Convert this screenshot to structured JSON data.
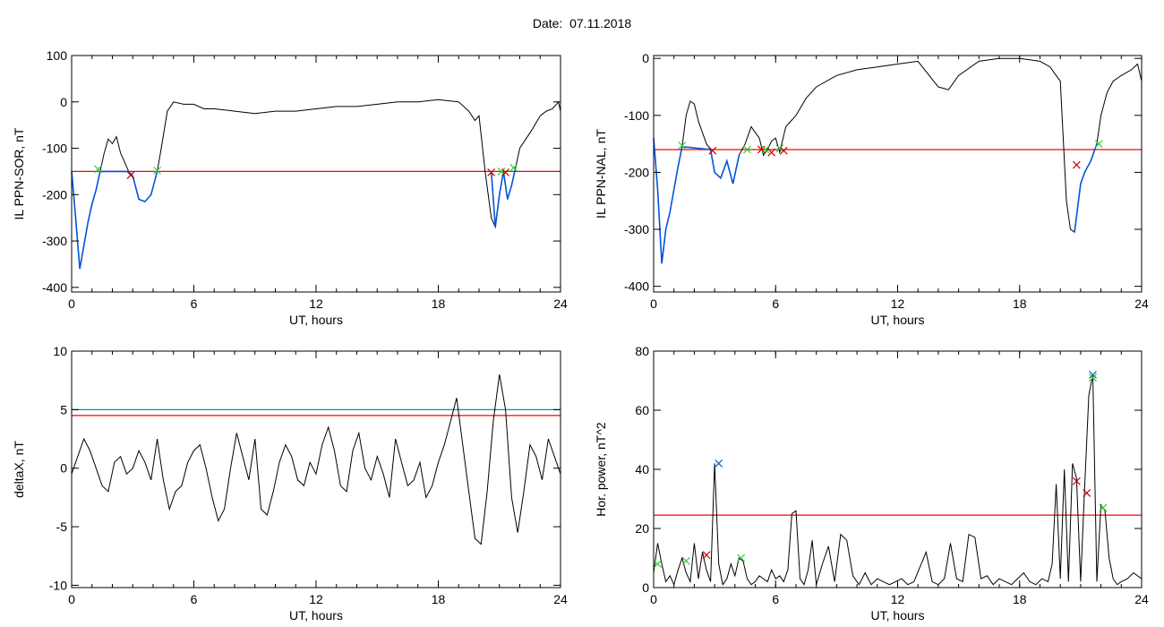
{
  "header": {
    "date_label": "Date:",
    "date_value": "07.11.2018"
  },
  "chart_data": [
    {
      "id": "panel-sor",
      "type": "line",
      "title": "",
      "xlabel": "UT, hours",
      "ylabel": "IL PPN-SOR, nT",
      "xlim": [
        0,
        24
      ],
      "ylim": [
        -410,
        100
      ],
      "x_ticks": [
        0,
        6,
        12,
        18,
        24
      ],
      "y_ticks": [
        100,
        0,
        -100,
        -200,
        -300,
        -400
      ],
      "threshold_lines": [
        {
          "value": -150,
          "color": "#ff0000"
        }
      ],
      "series": [
        {
          "color": "#000000",
          "x": [
            0,
            0.2,
            0.4,
            0.6,
            0.8,
            1.0,
            1.2,
            1.4,
            1.6,
            1.8,
            2.0,
            2.2,
            2.4,
            2.6,
            2.8,
            3.0,
            3.3,
            3.6,
            3.9,
            4.2,
            4.4,
            4.7,
            5.0,
            5.5,
            6.0,
            6.5,
            7.0,
            8.0,
            9.0,
            10.0,
            11.0,
            12.0,
            13.0,
            14.0,
            15.0,
            16.0,
            17.0,
            18.0,
            19.0,
            19.5,
            19.8,
            20.0,
            20.3,
            20.6,
            20.8,
            21.0,
            21.2,
            21.4,
            21.6,
            21.8,
            22.0,
            22.3,
            22.6,
            23.0,
            23.3,
            23.6,
            23.9,
            24.0
          ],
          "y": [
            -150,
            -250,
            -360,
            -310,
            -260,
            -220,
            -190,
            -150,
            -110,
            -80,
            -90,
            -75,
            -110,
            -130,
            -150,
            -160,
            -210,
            -215,
            -200,
            -150,
            -100,
            -20,
            0,
            -5,
            -5,
            -15,
            -15,
            -20,
            -25,
            -20,
            -20,
            -15,
            -10,
            -10,
            -5,
            0,
            0,
            5,
            0,
            -20,
            -40,
            -30,
            -150,
            -250,
            -270,
            -200,
            -150,
            -210,
            -180,
            -140,
            -100,
            -80,
            -60,
            -30,
            -20,
            -15,
            0,
            -20
          ]
        },
        {
          "color": "#0055dd",
          "x": [
            0,
            0.2,
            0.4,
            0.6,
            0.8,
            1.0,
            1.2,
            1.4,
            2.8,
            3.0,
            3.3,
            3.6,
            3.9,
            4.2,
            20.6,
            20.8,
            21.0,
            21.2,
            21.4,
            21.6,
            21.8
          ],
          "y": [
            -150,
            -250,
            -360,
            -310,
            -260,
            -220,
            -190,
            -150,
            -150,
            -160,
            -210,
            -215,
            -200,
            -150,
            -150,
            -270,
            -200,
            -150,
            -210,
            -180,
            -140
          ]
        }
      ],
      "markers": [
        {
          "x": 1.3,
          "y": -145,
          "color": "#33cc33"
        },
        {
          "x": 2.9,
          "y": -158,
          "color": "#cc0000"
        },
        {
          "x": 4.2,
          "y": -148,
          "color": "#33cc33"
        },
        {
          "x": 20.6,
          "y": -152,
          "color": "#cc0000"
        },
        {
          "x": 21.1,
          "y": -150,
          "color": "#33cc33"
        },
        {
          "x": 21.3,
          "y": -152,
          "color": "#cc0000"
        },
        {
          "x": 21.7,
          "y": -142,
          "color": "#33cc33"
        }
      ]
    },
    {
      "id": "panel-nal",
      "type": "line",
      "title": "",
      "xlabel": "UT, hours",
      "ylabel": "IL PPN-NAL, nT",
      "xlim": [
        0,
        24
      ],
      "ylim": [
        -410,
        5
      ],
      "x_ticks": [
        0,
        6,
        12,
        18,
        24
      ],
      "y_ticks": [
        0,
        -100,
        -200,
        -300,
        -400
      ],
      "threshold_lines": [
        {
          "value": -160,
          "color": "#ff0000"
        }
      ],
      "series": [
        {
          "color": "#000000",
          "x": [
            0,
            0.2,
            0.4,
            0.6,
            0.8,
            1.0,
            1.2,
            1.4,
            1.6,
            1.8,
            2.0,
            2.2,
            2.4,
            2.6,
            2.8,
            3.0,
            3.3,
            3.6,
            3.9,
            4.2,
            4.5,
            4.8,
            5.0,
            5.2,
            5.4,
            5.6,
            5.8,
            6.0,
            6.2,
            6.5,
            7.0,
            7.5,
            8.0,
            9.0,
            10.0,
            11.0,
            12.0,
            13.0,
            14.0,
            14.5,
            15.0,
            16.0,
            17.0,
            18.0,
            19.0,
            19.5,
            19.8,
            20.0,
            20.3,
            20.5,
            20.7,
            21.0,
            21.2,
            21.5,
            21.8,
            22.0,
            22.3,
            22.6,
            23.0,
            23.5,
            23.8,
            24.0
          ],
          "y": [
            -140,
            -230,
            -360,
            -300,
            -270,
            -230,
            -190,
            -155,
            -100,
            -75,
            -80,
            -110,
            -130,
            -150,
            -160,
            -200,
            -210,
            -180,
            -220,
            -170,
            -150,
            -120,
            -130,
            -140,
            -170,
            -160,
            -145,
            -140,
            -165,
            -120,
            -100,
            -70,
            -50,
            -30,
            -20,
            -15,
            -10,
            -5,
            -50,
            -55,
            -30,
            -5,
            0,
            0,
            -5,
            -15,
            -30,
            -40,
            -250,
            -300,
            -305,
            -220,
            -200,
            -180,
            -150,
            -100,
            -60,
            -40,
            -30,
            -20,
            -10,
            -40
          ]
        },
        {
          "color": "#0055dd",
          "x": [
            0,
            0.2,
            0.4,
            0.6,
            0.8,
            1.0,
            1.2,
            1.4,
            2.8,
            3.0,
            3.3,
            3.6,
            3.9,
            4.2,
            20.7,
            21.0,
            21.2,
            21.5,
            21.8
          ],
          "y": [
            -140,
            -230,
            -360,
            -300,
            -270,
            -230,
            -190,
            -155,
            -160,
            -200,
            -210,
            -180,
            -220,
            -170,
            -305,
            -220,
            -200,
            -180,
            -150
          ]
        }
      ],
      "markers": [
        {
          "x": 1.4,
          "y": -153,
          "color": "#33cc33"
        },
        {
          "x": 2.9,
          "y": -162,
          "color": "#cc0000"
        },
        {
          "x": 4.6,
          "y": -160,
          "color": "#33cc33"
        },
        {
          "x": 5.3,
          "y": -160,
          "color": "#cc0000"
        },
        {
          "x": 5.5,
          "y": -160,
          "color": "#33cc33"
        },
        {
          "x": 5.8,
          "y": -165,
          "color": "#cc0000"
        },
        {
          "x": 6.2,
          "y": -158,
          "color": "#33cc33"
        },
        {
          "x": 6.4,
          "y": -162,
          "color": "#cc0000"
        },
        {
          "x": 20.8,
          "y": -187,
          "color": "#cc0000"
        },
        {
          "x": 21.9,
          "y": -150,
          "color": "#33cc33"
        }
      ]
    },
    {
      "id": "panel-deltax",
      "type": "line",
      "title": "",
      "xlabel": "UT, hours",
      "ylabel": "deltaX, nT",
      "xlim": [
        0,
        24
      ],
      "ylim": [
        -10.2,
        10
      ],
      "x_ticks": [
        0,
        6,
        12,
        18,
        24
      ],
      "y_ticks": [
        10,
        5,
        0,
        -5,
        -10
      ],
      "threshold_lines": [
        {
          "value": 5.0,
          "color": "#009999"
        },
        {
          "value": 4.5,
          "color": "#ff0000"
        }
      ],
      "series": [
        {
          "color": "#000000",
          "x": [
            0,
            0.3,
            0.6,
            0.9,
            1.2,
            1.5,
            1.8,
            2.1,
            2.4,
            2.7,
            3.0,
            3.3,
            3.6,
            3.9,
            4.2,
            4.5,
            4.8,
            5.1,
            5.4,
            5.7,
            6.0,
            6.3,
            6.6,
            6.9,
            7.2,
            7.5,
            7.8,
            8.1,
            8.4,
            8.7,
            9.0,
            9.3,
            9.6,
            9.9,
            10.2,
            10.5,
            10.8,
            11.1,
            11.4,
            11.7,
            12.0,
            12.3,
            12.6,
            12.9,
            13.2,
            13.5,
            13.8,
            14.1,
            14.4,
            14.7,
            15.0,
            15.3,
            15.6,
            15.9,
            16.2,
            16.5,
            16.8,
            17.1,
            17.4,
            17.7,
            18.0,
            18.3,
            18.6,
            18.9,
            19.2,
            19.5,
            19.8,
            20.1,
            20.4,
            20.7,
            21.0,
            21.3,
            21.6,
            21.9,
            22.2,
            22.5,
            22.8,
            23.1,
            23.4,
            23.7,
            24.0
          ],
          "y": [
            -0.5,
            1.0,
            2.5,
            1.5,
            0.0,
            -1.5,
            -2.0,
            0.5,
            1.0,
            -0.5,
            0.0,
            1.5,
            0.5,
            -1.0,
            2.5,
            -1.0,
            -3.5,
            -2.0,
            -1.5,
            0.5,
            1.5,
            2.0,
            0.0,
            -2.5,
            -4.5,
            -3.5,
            0.0,
            3.0,
            1.0,
            -1.0,
            2.5,
            -3.5,
            -4.0,
            -2.0,
            0.5,
            2.0,
            1.0,
            -1.0,
            -1.5,
            0.5,
            -0.5,
            2.0,
            3.5,
            1.5,
            -1.5,
            -2.0,
            1.5,
            3.0,
            0.0,
            -1.0,
            1.0,
            -0.5,
            -2.5,
            2.5,
            0.5,
            -1.5,
            -1.0,
            0.5,
            -2.5,
            -1.5,
            0.5,
            2.0,
            4.0,
            6.0,
            2.0,
            -2.0,
            -6.0,
            -6.5,
            -2.0,
            4.0,
            8.0,
            5.0,
            -2.5,
            -5.5,
            -2.0,
            2.0,
            1.0,
            -1.0,
            2.5,
            1.0,
            -0.5
          ]
        }
      ],
      "markers": []
    },
    {
      "id": "panel-power",
      "type": "line",
      "title": "",
      "xlabel": "UT, hours",
      "ylabel": "Hor. power, nT^2",
      "xlim": [
        0,
        24
      ],
      "ylim": [
        0,
        80
      ],
      "x_ticks": [
        0,
        6,
        12,
        18,
        24
      ],
      "y_ticks": [
        80,
        60,
        40,
        20,
        0
      ],
      "threshold_lines": [
        {
          "value": 24.5,
          "color": "#ff0000"
        }
      ],
      "series": [
        {
          "color": "#000000",
          "x": [
            0,
            0.2,
            0.4,
            0.6,
            0.8,
            1.0,
            1.2,
            1.4,
            1.6,
            1.8,
            2.0,
            2.2,
            2.4,
            2.6,
            2.8,
            3.0,
            3.2,
            3.4,
            3.6,
            3.8,
            4.0,
            4.2,
            4.4,
            4.6,
            4.8,
            5.0,
            5.2,
            5.4,
            5.6,
            5.8,
            6.0,
            6.2,
            6.4,
            6.6,
            6.8,
            7.0,
            7.2,
            7.4,
            7.6,
            7.8,
            8.0,
            8.3,
            8.6,
            8.9,
            9.2,
            9.5,
            9.8,
            10.1,
            10.4,
            10.7,
            11.0,
            11.3,
            11.6,
            11.9,
            12.2,
            12.5,
            12.8,
            13.1,
            13.4,
            13.7,
            14.0,
            14.3,
            14.6,
            14.9,
            15.2,
            15.5,
            15.8,
            16.1,
            16.4,
            16.7,
            17.0,
            17.3,
            17.6,
            17.9,
            18.2,
            18.5,
            18.8,
            19.1,
            19.4,
            19.6,
            19.8,
            20.0,
            20.2,
            20.4,
            20.6,
            20.8,
            21.0,
            21.2,
            21.4,
            21.6,
            21.8,
            22.0,
            22.2,
            22.4,
            22.6,
            22.8,
            23.0,
            23.3,
            23.6,
            24.0
          ],
          "y": [
            5,
            15,
            8,
            2,
            4,
            1,
            6,
            10,
            5,
            2,
            15,
            3,
            12,
            6,
            2,
            42,
            8,
            1,
            3,
            8,
            4,
            10,
            9,
            3,
            1,
            2,
            4,
            3,
            2,
            6,
            3,
            4,
            2,
            6,
            25,
            26,
            3,
            1,
            6,
            16,
            1,
            8,
            14,
            2,
            18,
            16,
            4,
            1,
            5,
            1,
            3,
            2,
            1,
            2,
            3,
            1,
            2,
            7,
            12,
            2,
            1,
            3,
            15,
            3,
            2,
            18,
            17,
            3,
            4,
            1,
            3,
            2,
            1,
            3,
            5,
            2,
            1,
            3,
            2,
            8,
            35,
            3,
            40,
            2,
            42,
            37,
            2,
            34,
            65,
            72,
            2,
            28,
            26,
            10,
            3,
            1,
            2,
            3,
            5,
            3
          ]
        }
      ],
      "markers": [
        {
          "x": 0.2,
          "y": 8,
          "color": "#33cc33"
        },
        {
          "x": 1.6,
          "y": 9,
          "color": "#33cc33"
        },
        {
          "x": 2.6,
          "y": 11,
          "color": "#cc0000"
        },
        {
          "x": 3.2,
          "y": 42,
          "color": "#0066cc"
        },
        {
          "x": 4.3,
          "y": 10,
          "color": "#33cc33"
        },
        {
          "x": 20.8,
          "y": 36,
          "color": "#cc0000"
        },
        {
          "x": 21.3,
          "y": 32,
          "color": "#cc0000"
        },
        {
          "x": 21.6,
          "y": 72,
          "color": "#0066cc"
        },
        {
          "x": 21.6,
          "y": 71,
          "color": "#33cc33"
        },
        {
          "x": 22.1,
          "y": 27,
          "color": "#33cc33"
        }
      ]
    }
  ]
}
